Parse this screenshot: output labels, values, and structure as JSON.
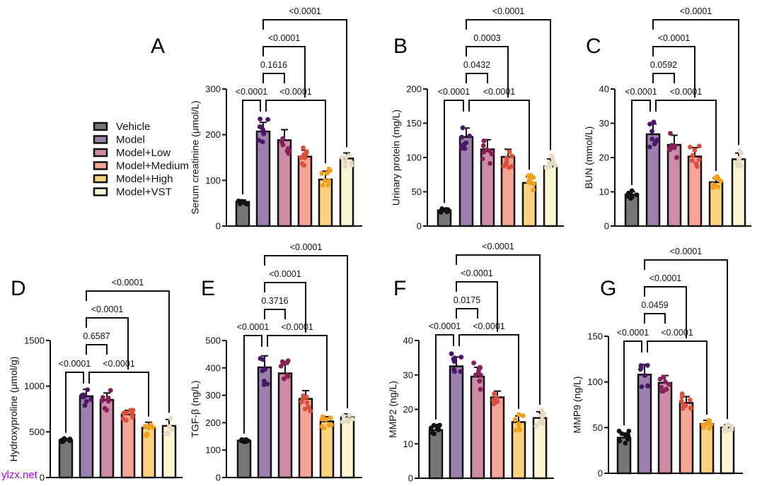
{
  "legend": {
    "categories": [
      "Vehicle",
      "Model",
      "Model+Low",
      "Model+Medium",
      "Model+High",
      "Model+VST"
    ],
    "bar_colors": [
      "#777777",
      "#9b80ad",
      "#cc8ba7",
      "#f7a496",
      "#fdd27e",
      "#fdf6d2"
    ],
    "dot_colors": [
      "#111111",
      "#4a1668",
      "#86205a",
      "#d9513c",
      "#f3a01c",
      "#e6dac6"
    ]
  },
  "watermark": "ylzx.net",
  "chart_data": [
    {
      "panel": "A",
      "type": "bar",
      "ylabel": "Serum creatinine (μmol/L)",
      "ylim": [
        0,
        300
      ],
      "yticks": [
        "0",
        "100",
        "200",
        "300"
      ],
      "values": [
        53,
        207,
        188,
        152,
        102,
        148
      ],
      "errors": [
        4,
        20,
        23,
        14,
        18,
        12
      ],
      "comparisons": [
        {
          "p": "<0.0001",
          "pair": [
            0,
            1
          ]
        },
        {
          "p": "<0.0001",
          "pair": [
            1,
            4
          ]
        },
        {
          "p": "0.1616",
          "pair": [
            1,
            2
          ]
        },
        {
          "p": "<0.0001",
          "pair": [
            1,
            3
          ]
        },
        {
          "p": "<0.0001",
          "pair": [
            1,
            5
          ]
        }
      ]
    },
    {
      "panel": "B",
      "type": "bar",
      "ylabel": "Urinary protein (mg/L)",
      "ylim": [
        0,
        200
      ],
      "yticks": [
        "0",
        "50",
        "100",
        "150",
        "200"
      ],
      "values": [
        23,
        130,
        112,
        101,
        63,
        87
      ],
      "errors": [
        2,
        13,
        14,
        11,
        9,
        11
      ],
      "comparisons": [
        {
          "p": "<0.0001",
          "pair": [
            0,
            1
          ]
        },
        {
          "p": "<0.0001",
          "pair": [
            1,
            4
          ]
        },
        {
          "p": "0.0432",
          "pair": [
            1,
            2
          ]
        },
        {
          "p": "0.0003",
          "pair": [
            1,
            3
          ]
        },
        {
          "p": "<0.0001",
          "pair": [
            1,
            5
          ]
        }
      ]
    },
    {
      "panel": "C",
      "type": "bar",
      "ylabel": "BUN (mmol/L)",
      "ylim": [
        0,
        40
      ],
      "yticks": [
        "0",
        "10",
        "20",
        "30",
        "40"
      ],
      "values": [
        9.2,
        26.8,
        23.7,
        20.3,
        12.8,
        19.5
      ],
      "errors": [
        0.8,
        3,
        2.8,
        2.6,
        1.3,
        1.8
      ],
      "comparisons": [
        {
          "p": "<0.0001",
          "pair": [
            0,
            1
          ]
        },
        {
          "p": "<0.0001",
          "pair": [
            1,
            4
          ]
        },
        {
          "p": "0.0592",
          "pair": [
            1,
            2
          ]
        },
        {
          "p": "<0.0001",
          "pair": [
            1,
            3
          ]
        },
        {
          "p": "<0.0001",
          "pair": [
            1,
            5
          ]
        }
      ]
    },
    {
      "panel": "D",
      "type": "bar",
      "ylabel": "Hydroxyproline (μmol/g)",
      "ylim": [
        0,
        1500
      ],
      "yticks": [
        "0",
        "500",
        "1000",
        "1500"
      ],
      "values": [
        410,
        890,
        850,
        690,
        545,
        565
      ],
      "errors": [
        15,
        75,
        75,
        45,
        60,
        70
      ],
      "comparisons": [
        {
          "p": "<0.0001",
          "pair": [
            0,
            1
          ]
        },
        {
          "p": "<0.0001",
          "pair": [
            1,
            4
          ]
        },
        {
          "p": "0.6587",
          "pair": [
            1,
            2
          ]
        },
        {
          "p": "<0.0001",
          "pair": [
            1,
            3
          ]
        },
        {
          "p": "<0.0001",
          "pair": [
            1,
            5
          ]
        }
      ]
    },
    {
      "panel": "E",
      "type": "bar",
      "ylabel": "TGF-β (ng/L)",
      "ylim": [
        0,
        500
      ],
      "yticks": [
        "0",
        "100",
        "200",
        "300",
        "400",
        "500"
      ],
      "values": [
        135,
        402,
        380,
        287,
        205,
        220
      ],
      "errors": [
        4,
        42,
        33,
        30,
        17,
        12
      ],
      "comparisons": [
        {
          "p": "<0.0001",
          "pair": [
            0,
            1
          ]
        },
        {
          "p": "<0.0001",
          "pair": [
            1,
            4
          ]
        },
        {
          "p": "0.3716",
          "pair": [
            1,
            2
          ]
        },
        {
          "p": "<0.0001",
          "pair": [
            1,
            3
          ]
        },
        {
          "p": "<0.0001",
          "pair": [
            1,
            5
          ]
        }
      ]
    },
    {
      "panel": "F",
      "type": "bar",
      "ylabel": "MMP2 (ng/L)",
      "ylim": [
        0,
        40
      ],
      "yticks": [
        "0",
        "10",
        "20",
        "30",
        "40"
      ],
      "values": [
        14,
        32.5,
        29.5,
        23.5,
        16.3,
        17.5
      ],
      "errors": [
        1,
        2.7,
        2.7,
        1.8,
        1.8,
        1.8
      ],
      "comparisons": [
        {
          "p": "<0.0001",
          "pair": [
            0,
            1
          ]
        },
        {
          "p": "<0.0001",
          "pair": [
            1,
            4
          ]
        },
        {
          "p": "0.0175",
          "pair": [
            1,
            2
          ]
        },
        {
          "p": "<0.0001",
          "pair": [
            1,
            3
          ]
        },
        {
          "p": "<0.0001",
          "pair": [
            1,
            5
          ]
        }
      ]
    },
    {
      "panel": "G",
      "type": "bar",
      "ylabel": "MMP9 (ng/L)",
      "ylim": [
        0,
        150
      ],
      "yticks": [
        "0",
        "50",
        "100",
        "150"
      ],
      "values": [
        39,
        108,
        99,
        77,
        54,
        50
      ],
      "errors": [
        5,
        11,
        8,
        7,
        4,
        3
      ],
      "comparisons": [
        {
          "p": "<0.0001",
          "pair": [
            0,
            1
          ]
        },
        {
          "p": "<0.0001",
          "pair": [
            1,
            4
          ]
        },
        {
          "p": "0.0459",
          "pair": [
            1,
            2
          ]
        },
        {
          "p": "<0.0001",
          "pair": [
            1,
            3
          ]
        },
        {
          "p": "<0.0001",
          "pair": [
            1,
            5
          ]
        }
      ]
    }
  ]
}
